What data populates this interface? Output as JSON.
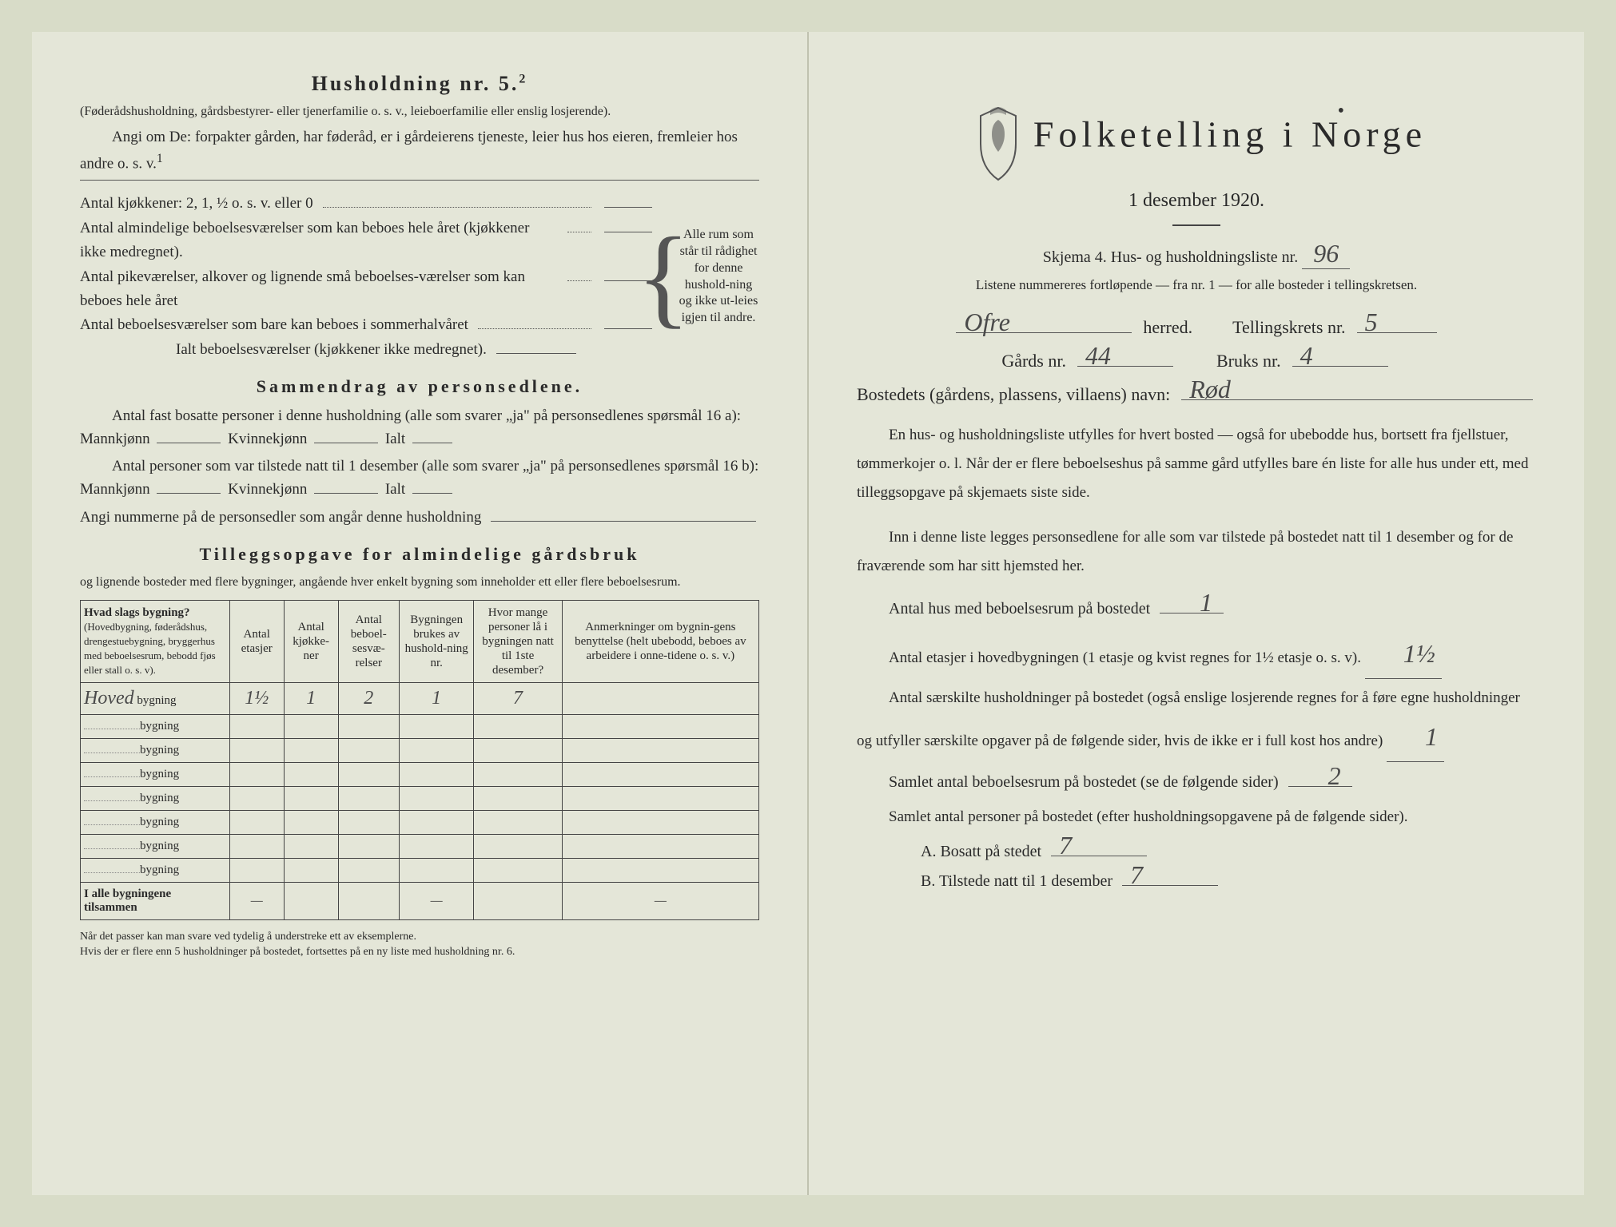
{
  "left": {
    "title": "Husholdning nr. 5.",
    "title_sup": "2",
    "intro1": "(Føderådshusholdning, gårdsbestyrer- eller tjenerfamilie o. s. v., leieboerfamilie eller enslig losjerende).",
    "intro2": "Angi om De: forpakter gården, har føderåd, er i gårdeierens tjeneste, leier hus hos eieren, fremleier hos andre o. s. v.",
    "intro2_sup": "1",
    "kjokken_label": "Antal kjøkkener: 2, 1, ½ o. s. v. eller 0",
    "alm_label": "Antal almindelige beboelsesværelser som kan beboes hele året (kjøkkener ikke medregnet).",
    "pike_label": "Antal pikeværelser, alkover og lignende små beboelses-værelser som kan beboes hele året",
    "sommer_label": "Antal beboelsesværelser som bare kan beboes i sommerhalvåret",
    "ialt_label": "Ialt beboelsesværelser (kjøkkener ikke medregnet).",
    "brace_text": "Alle rum som står til rådighet for denne hushold-ning og ikke ut-leies igjen til andre.",
    "sammendrag_title": "Sammendrag av personsedlene.",
    "sammendrag_l1": "Antal fast bosatte personer i denne husholdning (alle som svarer „ja\" på personsedlenes spørsmål 16 a): Mannkjønn",
    "kvinne": "Kvinnekjønn",
    "ialt": "Ialt",
    "sammendrag_l2": "Antal personer som var tilstede natt til 1 desember (alle som svarer „ja\" på personsedlenes spørsmål 16 b): Mannkjønn",
    "angi_nummer": "Angi nummerne på de personsedler som angår denne husholdning",
    "tillegg_title": "Tilleggsopgave for almindelige gårdsbruk",
    "tillegg_sub": "og lignende bosteder med flere bygninger, angående hver enkelt bygning som inneholder ett eller flere beboelsesrum.",
    "table": {
      "cols": [
        "Hvad slags bygning?",
        "Antal etasjer",
        "Antal kjøkke-ner",
        "Antal beboel-sesvæ-relser",
        "Bygningen brukes av hushold-ning nr.",
        "Hvor mange personer lå i bygningen natt til 1ste desember?",
        "Anmerkninger om bygnin-gens benyttelse (helt ubebodd, beboes av arbeidere i onne-tidene o. s. v.)"
      ],
      "col0_sub": "(Hovedbygning, føderådshus, drengestuebygning, bryggerhus med beboelsesrum, bebodd fjøs eller stall o. s. v).",
      "rows": [
        {
          "label_hw": "Hoved",
          "label": "bygning",
          "c1": "1½",
          "c2": "1",
          "c3": "2",
          "c4": "1",
          "c5": "7",
          "c6": ""
        },
        {
          "label": "bygning"
        },
        {
          "label": "bygning"
        },
        {
          "label": "bygning"
        },
        {
          "label": "bygning"
        },
        {
          "label": "bygning"
        },
        {
          "label": "bygning"
        },
        {
          "label": "bygning"
        }
      ],
      "total_label": "I alle bygningene tilsammen",
      "dash": "—"
    },
    "footnote": "Når det passer kan man svare ved tydelig å understreke ett av eksemplerne.\nHvis der er flere enn 5 husholdninger på bostedet, fortsettes på en ny liste med husholdning nr. 6."
  },
  "right": {
    "main_title": "Folketelling i Norge",
    "date": "1 desember 1920.",
    "skjema": "Skjema 4. Hus- og husholdningsliste nr.",
    "skjema_nr": "96",
    "sub": "Listene nummereres fortløpende — fra nr. 1 — for alle bosteder i tellingskretsen.",
    "herred_hw": "Ofre",
    "herred_label": "herred.",
    "krets_label": "Tellingskrets nr.",
    "krets_nr": "5",
    "gards_label": "Gårds nr.",
    "gards_nr": "44",
    "bruks_label": "Bruks nr.",
    "bruks_nr": "4",
    "bosted_label": "Bostedets (gårdens, plassens, villaens) navn:",
    "bosted_hw": "Rød",
    "body1": "En hus- og husholdningsliste utfylles for hvert bosted — også for ubebodde hus, bortsett fra fjellstuer, tømmerkojer o. l. Når der er flere beboelseshus på samme gård utfylles bare én liste for alle hus under ett, med tilleggsopgave på skjemaets siste side.",
    "body2": "Inn i denne liste legges personsedlene for alle som var tilstede på bostedet natt til 1 desember og for de fraværende som har sitt hjemsted her.",
    "q1": "Antal hus med beboelsesrum på bostedet",
    "q1_a": "1",
    "q2": "Antal etasjer i hovedbygningen (1 etasje og kvist regnes for 1½ etasje o. s. v).",
    "q2_a": "1½",
    "q3": "Antal særskilte husholdninger på bostedet (også enslige losjerende regnes for å føre egne husholdninger og utfyller særskilte opgaver på de følgende sider, hvis de ikke er i full kost hos andre)",
    "q3_a": "1",
    "q4": "Samlet antal beboelsesrum på bostedet (se de følgende sider)",
    "q4_a": "2",
    "q5": "Samlet antal personer på bostedet (efter husholdningsopgavene på de følgende sider).",
    "qA": "A. Bosatt på stedet",
    "qA_a": "7",
    "qB": "B. Tilstede natt til 1 desember",
    "qB_a": "7"
  },
  "colors": {
    "paper": "#e4e6d8",
    "bg": "#d8dcc8",
    "text": "#2a2a2a",
    "handwriting": "#4a4a4a",
    "border": "#444444"
  }
}
